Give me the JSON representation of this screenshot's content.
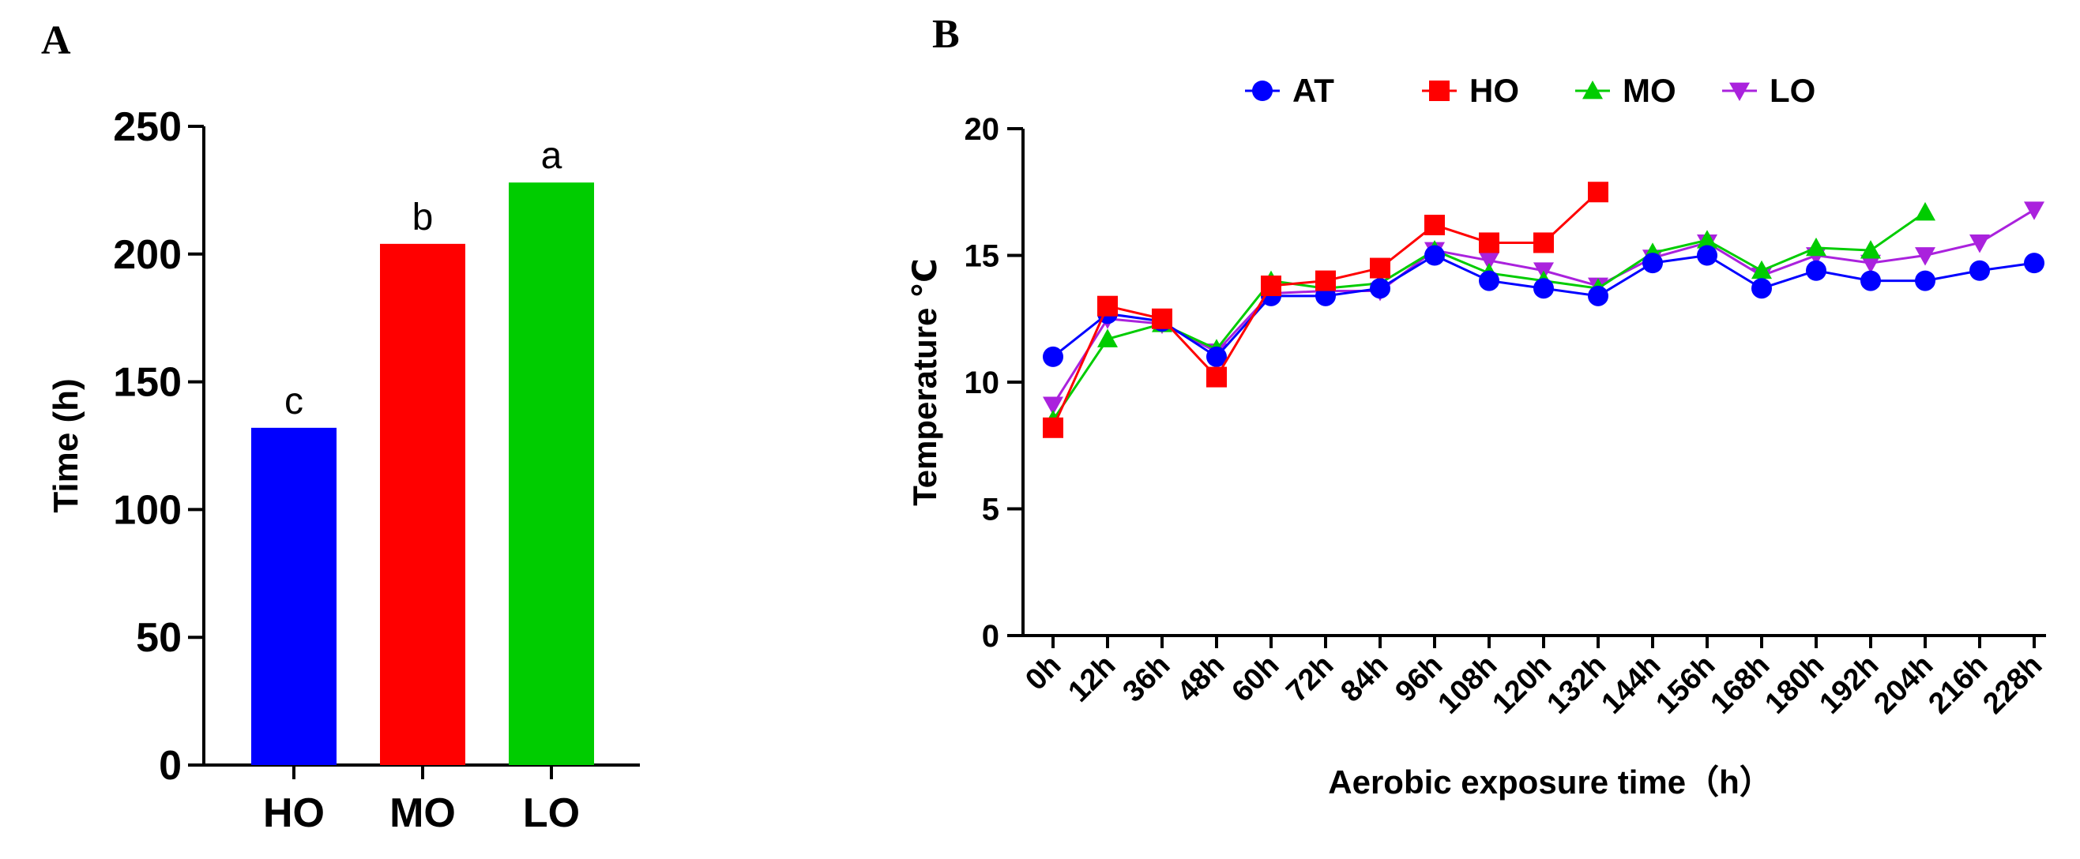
{
  "chart_data": [
    {
      "panel_label": "A",
      "type": "bar",
      "categories": [
        "HO",
        "MO",
        "LO"
      ],
      "values": [
        132,
        204,
        228
      ],
      "colors": [
        "#0000ff",
        "#ff0000",
        "#00cc00"
      ],
      "significance_letters": [
        "c",
        "b",
        "a"
      ],
      "ylabel": "Time (h)",
      "xlabel": "",
      "ylim": [
        0,
        250
      ],
      "yticks": [
        0,
        50,
        100,
        150,
        200,
        250
      ],
      "ytick_labels": [
        "0",
        "50",
        "100",
        "150",
        "200",
        "250"
      ]
    },
    {
      "panel_label": "B",
      "type": "line",
      "categories": [
        "0h",
        "12h",
        "36h",
        "48h",
        "60h",
        "72h",
        "84h",
        "96h",
        "108h",
        "120h",
        "132h",
        "144h",
        "156h",
        "168h",
        "180h",
        "192h",
        "204h",
        "216h",
        "228h"
      ],
      "xlabel": "Aerobic exposure time（h）",
      "ylabel": "Temperature ℃",
      "ylim": [
        0,
        20
      ],
      "yticks": [
        0,
        5,
        10,
        15,
        20
      ],
      "ytick_labels": [
        "0",
        "5",
        "10",
        "15",
        "20"
      ],
      "legend_position": "top",
      "series": [
        {
          "name": "AT",
          "color": "#0000ff",
          "marker": "circle",
          "values": [
            11.0,
            12.7,
            12.4,
            11.0,
            13.4,
            13.4,
            13.7,
            15.0,
            14.0,
            13.7,
            13.4,
            14.7,
            15.0,
            13.7,
            14.4,
            14.0,
            14.0,
            14.4,
            14.7
          ]
        },
        {
          "name": "HO",
          "color": "#ff0000",
          "marker": "square",
          "values": [
            8.2,
            13.0,
            12.5,
            10.2,
            13.8,
            14.0,
            14.5,
            16.2,
            15.5,
            15.5,
            17.5,
            null,
            null,
            null,
            null,
            null,
            null,
            null,
            null
          ]
        },
        {
          "name": "MO",
          "color": "#00cc00",
          "marker": "triangle-up",
          "values": [
            8.5,
            11.7,
            12.3,
            11.3,
            14.0,
            13.7,
            13.9,
            15.2,
            14.3,
            14.0,
            13.7,
            15.1,
            15.6,
            14.4,
            15.3,
            15.2,
            16.7,
            null,
            null
          ]
        },
        {
          "name": "LO",
          "color": "#aa22dd",
          "marker": "triangle-down",
          "values": [
            9.1,
            12.5,
            12.3,
            11.2,
            13.5,
            13.6,
            13.6,
            15.2,
            14.8,
            14.4,
            13.8,
            14.9,
            15.5,
            14.2,
            15.0,
            14.7,
            15.0,
            15.5,
            16.8
          ]
        }
      ]
    }
  ]
}
